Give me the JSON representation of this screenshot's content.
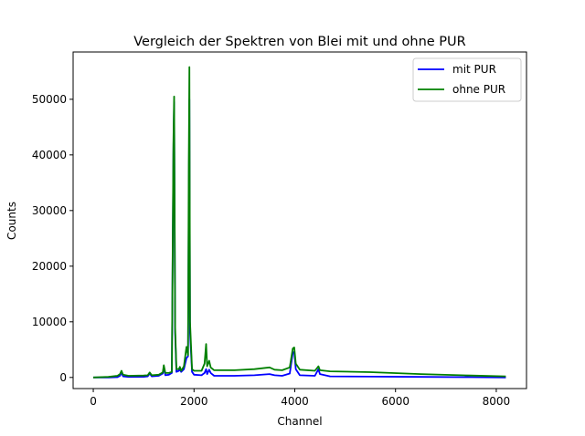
{
  "chart_data": {
    "type": "line",
    "title": "Vergleich der Spektren von Blei mit und ohne PUR",
    "xlabel": "Channel",
    "ylabel": "Counts",
    "xlim": [
      -400,
      8600
    ],
    "ylim": [
      -2000,
      58500
    ],
    "x_ticks": [
      0,
      2000,
      4000,
      6000,
      8000
    ],
    "y_ticks": [
      0,
      10000,
      20000,
      30000,
      40000,
      50000
    ],
    "grid": false,
    "legend_position": "top-right",
    "series": [
      {
        "name": "mit PUR",
        "color": "#0000ff",
        "points": [
          [
            0,
            0
          ],
          [
            300,
            0
          ],
          [
            480,
            50
          ],
          [
            530,
            300
          ],
          [
            560,
            900
          ],
          [
            590,
            200
          ],
          [
            700,
            100
          ],
          [
            1000,
            120
          ],
          [
            1080,
            200
          ],
          [
            1120,
            700
          ],
          [
            1160,
            200
          ],
          [
            1300,
            300
          ],
          [
            1380,
            700
          ],
          [
            1400,
            1800
          ],
          [
            1430,
            400
          ],
          [
            1500,
            500
          ],
          [
            1560,
            800
          ],
          [
            1590,
            40000
          ],
          [
            1605,
            49500
          ],
          [
            1625,
            8000
          ],
          [
            1650,
            1000
          ],
          [
            1700,
            1200
          ],
          [
            1720,
            1500
          ],
          [
            1745,
            1000
          ],
          [
            1800,
            1500
          ],
          [
            1850,
            3500
          ],
          [
            1880,
            3800
          ],
          [
            1895,
            30000
          ],
          [
            1908,
            50000
          ],
          [
            1920,
            8000
          ],
          [
            1960,
            1000
          ],
          [
            2000,
            500
          ],
          [
            2150,
            400
          ],
          [
            2210,
            800
          ],
          [
            2240,
            1500
          ],
          [
            2260,
            600
          ],
          [
            2300,
            1400
          ],
          [
            2330,
            800
          ],
          [
            2400,
            300
          ],
          [
            2800,
            300
          ],
          [
            3200,
            400
          ],
          [
            3500,
            600
          ],
          [
            3600,
            400
          ],
          [
            3750,
            300
          ],
          [
            3900,
            700
          ],
          [
            3960,
            4400
          ],
          [
            3990,
            4600
          ],
          [
            4020,
            1500
          ],
          [
            4100,
            400
          ],
          [
            4400,
            300
          ],
          [
            4470,
            1500
          ],
          [
            4500,
            600
          ],
          [
            4700,
            200
          ],
          [
            5500,
            150
          ],
          [
            6500,
            100
          ],
          [
            7500,
            50
          ],
          [
            8190,
            0
          ]
        ]
      },
      {
        "name": "ohne PUR",
        "color": "#008000",
        "points": [
          [
            0,
            0
          ],
          [
            300,
            100
          ],
          [
            480,
            300
          ],
          [
            530,
            600
          ],
          [
            560,
            1200
          ],
          [
            590,
            500
          ],
          [
            700,
            300
          ],
          [
            1000,
            350
          ],
          [
            1080,
            400
          ],
          [
            1120,
            900
          ],
          [
            1160,
            400
          ],
          [
            1300,
            500
          ],
          [
            1380,
            900
          ],
          [
            1400,
            2200
          ],
          [
            1430,
            800
          ],
          [
            1500,
            800
          ],
          [
            1560,
            1000
          ],
          [
            1590,
            42000
          ],
          [
            1605,
            50500
          ],
          [
            1625,
            9000
          ],
          [
            1650,
            1500
          ],
          [
            1700,
            1500
          ],
          [
            1720,
            1900
          ],
          [
            1745,
            1200
          ],
          [
            1800,
            2000
          ],
          [
            1850,
            5500
          ],
          [
            1880,
            4000
          ],
          [
            1895,
            38000
          ],
          [
            1908,
            55800
          ],
          [
            1920,
            10000
          ],
          [
            1960,
            1500
          ],
          [
            2000,
            1200
          ],
          [
            2150,
            1200
          ],
          [
            2210,
            2500
          ],
          [
            2240,
            6000
          ],
          [
            2260,
            2000
          ],
          [
            2300,
            3000
          ],
          [
            2330,
            1800
          ],
          [
            2400,
            1300
          ],
          [
            2800,
            1300
          ],
          [
            3200,
            1500
          ],
          [
            3500,
            1800
          ],
          [
            3600,
            1400
          ],
          [
            3750,
            1300
          ],
          [
            3900,
            1800
          ],
          [
            3960,
            5200
          ],
          [
            3990,
            5400
          ],
          [
            4020,
            2500
          ],
          [
            4100,
            1400
          ],
          [
            4400,
            1200
          ],
          [
            4470,
            2000
          ],
          [
            4500,
            1300
          ],
          [
            4700,
            1100
          ],
          [
            5500,
            950
          ],
          [
            6500,
            600
          ],
          [
            7500,
            350
          ],
          [
            8190,
            200
          ]
        ]
      }
    ]
  }
}
